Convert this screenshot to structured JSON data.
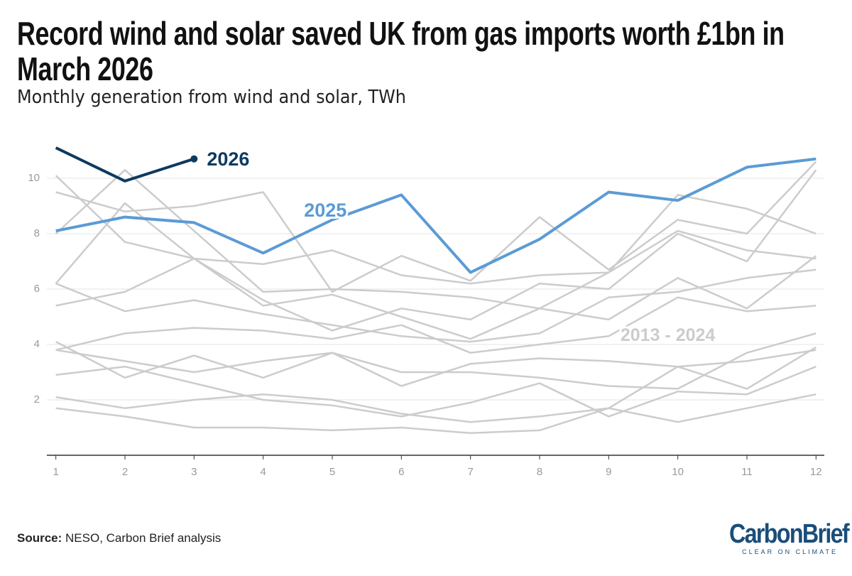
{
  "chart_data": {
    "type": "line",
    "title": "Record wind and solar saved UK from gas imports worth £1bn in March 2026",
    "subtitle": "Monthly generation from wind and solar, TWh",
    "annotation": "2013 - 2024",
    "x": [
      1,
      2,
      3,
      4,
      5,
      6,
      7,
      8,
      9,
      10,
      11,
      12
    ],
    "xlim": [
      0.87,
      12.12
    ],
    "xticks": [
      1,
      2,
      3,
      4,
      5,
      6,
      7,
      8,
      9,
      10,
      11,
      12
    ],
    "ylim": [
      0,
      11.5
    ],
    "yticks": [
      2,
      4,
      6,
      8,
      10
    ],
    "grid": true,
    "series": [
      {
        "color": "#cccccc",
        "values": [
          10.1,
          7.7,
          7.1,
          6.9,
          7.4,
          6.5,
          6.2,
          6.5,
          6.6,
          9.4,
          8.9,
          8.0
        ]
      },
      {
        "color": "#cccccc",
        "values": [
          9.5,
          8.8,
          9.0,
          9.5,
          5.9,
          7.2,
          6.3,
          8.6,
          6.7,
          8.5,
          8.0,
          10.6
        ]
      },
      {
        "color": "#cccccc",
        "values": [
          8.0,
          10.3,
          8.1,
          5.9,
          6.0,
          5.9,
          5.7,
          5.3,
          6.6,
          8.1,
          7.4,
          7.1
        ]
      },
      {
        "color": "#cccccc",
        "values": [
          6.2,
          9.1,
          7.1,
          5.6,
          4.5,
          5.3,
          4.9,
          6.2,
          6.0,
          8.0,
          7.0,
          10.3
        ]
      },
      {
        "color": "#cccccc",
        "values": [
          5.4,
          5.9,
          7.1,
          5.4,
          5.8,
          5.0,
          4.2,
          5.3,
          4.9,
          6.4,
          5.3,
          7.2
        ]
      },
      {
        "color": "#cccccc",
        "values": [
          6.2,
          5.2,
          5.6,
          5.1,
          4.7,
          4.3,
          4.1,
          4.4,
          5.7,
          5.9,
          6.4,
          6.7
        ]
      },
      {
        "color": "#cccccc",
        "values": [
          3.8,
          4.4,
          4.6,
          4.5,
          4.2,
          4.7,
          3.7,
          4.0,
          4.3,
          5.7,
          5.2,
          5.4
        ]
      },
      {
        "color": "#cccccc",
        "values": [
          4.1,
          2.8,
          3.6,
          2.8,
          3.7,
          2.5,
          3.3,
          3.5,
          3.4,
          3.2,
          3.4,
          3.8
        ]
      },
      {
        "color": "#cccccc",
        "values": [
          3.8,
          3.4,
          3.0,
          3.4,
          3.7,
          3.0,
          3.0,
          2.8,
          2.5,
          2.4,
          3.7,
          4.4
        ]
      },
      {
        "color": "#cccccc",
        "values": [
          2.9,
          3.2,
          2.6,
          2.0,
          1.8,
          1.4,
          1.9,
          2.6,
          1.4,
          2.3,
          2.2,
          3.2
        ]
      },
      {
        "color": "#cccccc",
        "values": [
          2.1,
          1.7,
          2.0,
          2.2,
          2.0,
          1.5,
          1.2,
          1.4,
          1.7,
          1.2,
          1.7,
          2.2
        ]
      },
      {
        "color": "#cccccc",
        "values": [
          1.7,
          1.4,
          1.0,
          1.0,
          0.9,
          1.0,
          0.8,
          0.9,
          1.7,
          3.2,
          2.4,
          3.9
        ]
      },
      {
        "name": "2025",
        "color": "#5b9bd5",
        "values": [
          8.1,
          8.6,
          8.4,
          7.3,
          8.5,
          9.4,
          6.6,
          7.8,
          9.5,
          9.2,
          10.4,
          10.7
        ]
      },
      {
        "name": "2026",
        "color": "#0e3a5e",
        "values": [
          11.1,
          9.9,
          10.7,
          null,
          null,
          null,
          null,
          null,
          null,
          null,
          null,
          null
        ]
      }
    ]
  },
  "footer": {
    "source_label": "Source:",
    "source": "NESO, Carbon Brief analysis",
    "logo": "CarbonBrief",
    "logo_tagline": "CLEAR ON CLIMATE"
  }
}
